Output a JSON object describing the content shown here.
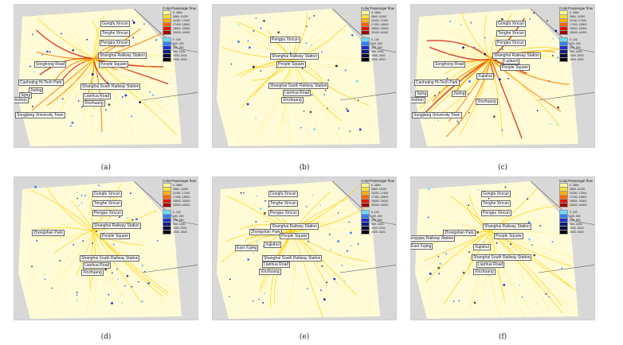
{
  "legend": {
    "color_header": "Color",
    "flow_header": "Passenger flow",
    "warm_colors": [
      "#ffff99",
      "#ffe033",
      "#ffb000",
      "#ff6600",
      "#e01800",
      "#9b0000"
    ],
    "cool_colors": [
      "#66ddff",
      "#2f7fff",
      "#1e2fd0",
      "#101a80",
      "#0a0a3a",
      "#000000"
    ],
    "warm_ranges": [
      "0..3860",
      "3860..11000",
      "11000..17400",
      "17400..18500",
      "18500..33000",
      "33000..44000"
    ],
    "cool_ranges": [
      "0..100",
      "100..300",
      "300..500",
      "500..1000",
      "1000..2000",
      "2000..4000"
    ]
  },
  "panels": [
    {
      "caption": "(a)",
      "labels": [
        "Gongfu Xincun",
        "Tonghe Xincun",
        "Pengpu Xincun",
        "Shanghai Railway Station",
        "Songhong Road",
        "People Square",
        "Caohejing Hi-Tech Park",
        "Shanghai South Railway Station",
        "Jiuting",
        "Lianhua Road",
        "Sijing",
        "Xinzhuang",
        "Sheshan",
        "Songjiang University Town"
      ],
      "intensity": "high"
    },
    {
      "caption": "(b)",
      "labels": [
        "Pengpu Xincun",
        "Shanghai Railway Station",
        "People Square",
        "Shanghai South Railway Station",
        "Lianhua Road",
        "Xinzhuang"
      ],
      "intensity": "low"
    },
    {
      "caption": "(c)",
      "labels": [
        "Gongfu Xincun",
        "Tonghe Xincun",
        "Pengpu Xincun",
        "Shanghai Railway Station",
        "Songhong Road",
        "Lujiazui",
        "People Square",
        "Caohejing Hi-Tech Park",
        "Xujiahui",
        "Jiuting",
        "Sijing",
        "Sheshan",
        "Xinzhuang",
        "Songjiang University Town"
      ],
      "intensity": "high"
    },
    {
      "caption": "(d)",
      "labels": [
        "Gongfu Xincun",
        "Tonghe Xincun",
        "Pengpu Xincun",
        "Shanghai Railway Station",
        "Zhongshan Park",
        "People Square",
        "Shanghai South Railway Station",
        "Lianhua Road",
        "Xinzhuang"
      ],
      "intensity": "low"
    },
    {
      "caption": "(e)",
      "labels": [
        "Gongfu Xincun",
        "Tonghe Xincun",
        "Pengpu Xincun",
        "Shanghai Railway Station",
        "Zhongshan Park",
        "People Square",
        "Xujiahui",
        "East Xujing",
        "Shanghai South Railway Station",
        "Lianhua Road",
        "Xinzhuang"
      ],
      "intensity": "medium"
    },
    {
      "caption": "(f)",
      "labels": [
        "Gongfu Xincun",
        "Tonghe Xincun",
        "Pengpu Xincun",
        "Shanghai Railway Station",
        "Zhongshan Park",
        "People Square",
        "Hongqiao Railway Station",
        "East Xujing",
        "Xujiahui",
        "Shanghai South Railway Station",
        "Lianhua Road",
        "Xinzhuang"
      ],
      "intensity": "medium"
    }
  ]
}
